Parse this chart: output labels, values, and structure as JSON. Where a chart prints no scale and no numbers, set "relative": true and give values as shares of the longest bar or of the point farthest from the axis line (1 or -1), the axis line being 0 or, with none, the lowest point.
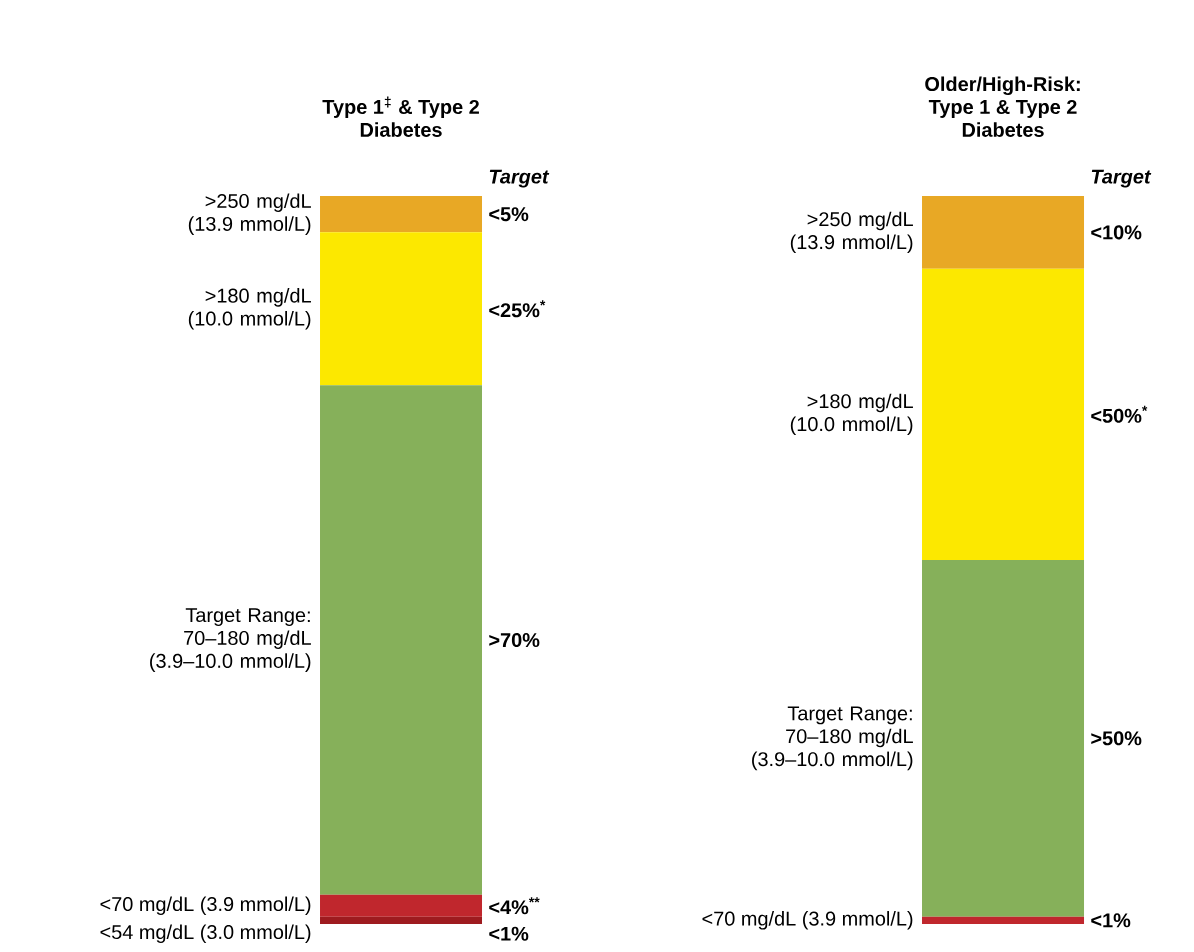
{
  "chart_data": [
    {
      "type": "bar",
      "stacked": true,
      "relative": true,
      "title": "Type 1$^{‡}$ & Type 2 Diabetes",
      "categories": [
        null
      ],
      "annotations": [
        "Target",
        "<5%",
        "<25%$^{*}$",
        ">70%",
        "<4%$^{**}$",
        "<1%"
      ],
      "series": [
        {
          "name": "<54 mg/dL (3.0 mmol/L)",
          "color": "#9e1b1f",
          "values": [
            0.01
          ]
        },
        {
          "name": "<70 mg/dL (3.9 mmol/L)",
          "color": "#c0272d",
          "values": [
            0.03
          ]
        },
        {
          "name": "Target Range: 70–180 mg/dL (3.9–10.0 mmol/L)",
          "color": "#86b05a",
          "values": [
            0.7
          ]
        },
        {
          "name": ">180 mg/dL (10.0 mmol/L)",
          "color": "#fce800",
          "values": [
            0.21
          ]
        },
        {
          "name": ">250 mg/dL (13.9 mmol/L)",
          "color": "#e8a825",
          "values": [
            0.05
          ]
        }
      ]
    },
    {
      "type": "bar",
      "stacked": true,
      "relative": true,
      "title": "Older/High-Risk: Type 1 & Type 2 Diabetes",
      "categories": [
        null
      ],
      "annotations": [
        "Target",
        "<10%",
        "<50%$^{*}$",
        ">50%",
        "<1%"
      ],
      "series": [
        {
          "name": "<70 mg/dL (3.9 mmol/L)",
          "color": "#c0272d",
          "values": [
            0.01
          ]
        },
        {
          "name": "Target Range: 70–180 mg/dL (3.9–10.0 mmol/L)",
          "color": "#86b05a",
          "values": [
            0.49
          ]
        },
        {
          "name": ">180 mg/dL (10.0 mmol/L)",
          "color": "#fce800",
          "values": [
            0.4
          ]
        },
        {
          "name": ">250 mg/dL (13.9 mmol/L)",
          "color": "#e8a825",
          "values": [
            0.1
          ]
        }
      ]
    }
  ]
}
